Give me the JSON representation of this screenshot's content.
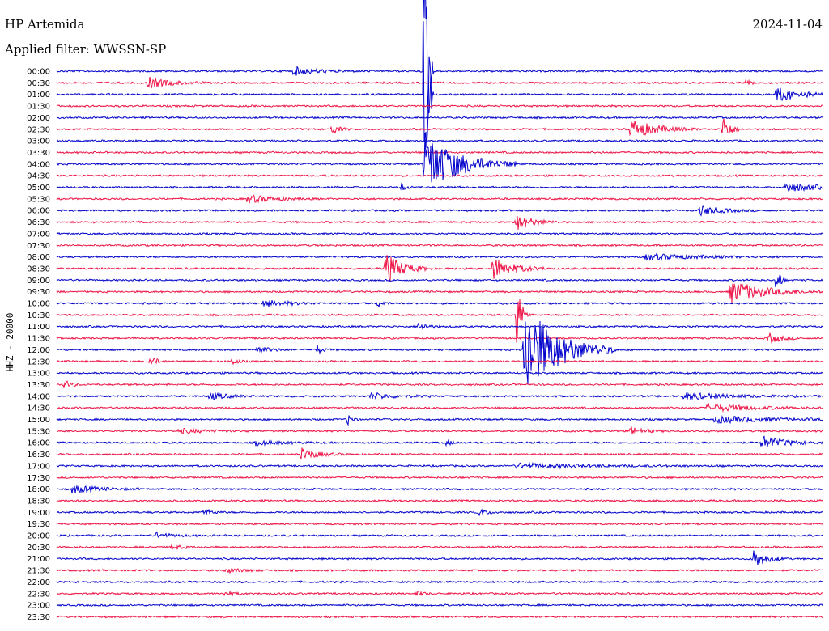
{
  "header": {
    "station": "HP Artemida",
    "filter": "Applied filter: WWSSN-SP",
    "date": "2024-11-04"
  },
  "chart_data": {
    "type": "line",
    "title": "",
    "ylabel": "HHZ - 20000",
    "xlabel": "",
    "grid": false,
    "colors": [
      "#0000cc",
      "#ee1144"
    ],
    "times": [
      "00:00",
      "00:30",
      "01:00",
      "01:30",
      "02:00",
      "02:30",
      "03:00",
      "03:30",
      "04:00",
      "04:30",
      "05:00",
      "05:30",
      "06:00",
      "06:30",
      "07:00",
      "07:30",
      "08:00",
      "08:30",
      "09:00",
      "09:30",
      "10:00",
      "10:30",
      "11:00",
      "11:30",
      "12:00",
      "12:30",
      "13:00",
      "13:30",
      "14:00",
      "14:30",
      "15:00",
      "15:30",
      "16:00",
      "16:30",
      "17:00",
      "17:30",
      "18:00",
      "18:30",
      "19:00",
      "19:30",
      "20:00",
      "20:30",
      "21:00",
      "21:30",
      "22:00",
      "22:30",
      "23:00",
      "23:30"
    ],
    "events": [
      {
        "row": 0,
        "pos": 0.31,
        "amp": 5,
        "width": 0.03
      },
      {
        "row": 1,
        "pos": 0.12,
        "amp": 7,
        "width": 0.025
      },
      {
        "row": 1,
        "pos": 0.9,
        "amp": 4,
        "width": 0.008
      },
      {
        "row": 2,
        "pos": 0.94,
        "amp": 9,
        "width": 0.03
      },
      {
        "row": 0,
        "pos": 0.48,
        "amp": 240,
        "width": 0.004
      },
      {
        "row": 2,
        "pos": 0.48,
        "amp": 210,
        "width": 0.004
      },
      {
        "row": 5,
        "pos": 0.36,
        "amp": 6,
        "width": 0.008
      },
      {
        "row": 5,
        "pos": 0.75,
        "amp": 12,
        "width": 0.03
      },
      {
        "row": 5,
        "pos": 0.87,
        "amp": 20,
        "width": 0.008
      },
      {
        "row": 8,
        "pos": 0.48,
        "amp": 40,
        "width": 0.04
      },
      {
        "row": 10,
        "pos": 0.45,
        "amp": 5,
        "width": 0.006
      },
      {
        "row": 10,
        "pos": 0.95,
        "amp": 6,
        "width": 0.04
      },
      {
        "row": 11,
        "pos": 0.25,
        "amp": 5,
        "width": 0.03
      },
      {
        "row": 12,
        "pos": 0.84,
        "amp": 6,
        "width": 0.025
      },
      {
        "row": 13,
        "pos": 0.6,
        "amp": 10,
        "width": 0.02
      },
      {
        "row": 16,
        "pos": 0.77,
        "amp": 4,
        "width": 0.06
      },
      {
        "row": 17,
        "pos": 0.43,
        "amp": 20,
        "width": 0.02
      },
      {
        "row": 17,
        "pos": 0.57,
        "amp": 14,
        "width": 0.025
      },
      {
        "row": 18,
        "pos": 0.94,
        "amp": 22,
        "width": 0.004
      },
      {
        "row": 19,
        "pos": 0.88,
        "amp": 14,
        "width": 0.04
      },
      {
        "row": 20,
        "pos": 0.27,
        "amp": 4,
        "width": 0.03
      },
      {
        "row": 20,
        "pos": 0.42,
        "amp": 5,
        "width": 0.006
      },
      {
        "row": 21,
        "pos": 0.6,
        "amp": 45,
        "width": 0.006
      },
      {
        "row": 22,
        "pos": 0.47,
        "amp": 6,
        "width": 0.012
      },
      {
        "row": 23,
        "pos": 0.93,
        "amp": 6,
        "width": 0.015
      },
      {
        "row": 24,
        "pos": 0.26,
        "amp": 5,
        "width": 0.015
      },
      {
        "row": 24,
        "pos": 0.34,
        "amp": 6,
        "width": 0.006
      },
      {
        "row": 24,
        "pos": 0.61,
        "amp": 60,
        "width": 0.04
      },
      {
        "row": 25,
        "pos": 0.12,
        "amp": 8,
        "width": 0.008
      },
      {
        "row": 25,
        "pos": 0.23,
        "amp": 5,
        "width": 0.006
      },
      {
        "row": 27,
        "pos": 0.01,
        "amp": 6,
        "width": 0.008
      },
      {
        "row": 28,
        "pos": 0.2,
        "amp": 5,
        "width": 0.02
      },
      {
        "row": 28,
        "pos": 0.41,
        "amp": 4,
        "width": 0.03
      },
      {
        "row": 28,
        "pos": 0.82,
        "amp": 4,
        "width": 0.06
      },
      {
        "row": 29,
        "pos": 0.85,
        "amp": 5,
        "width": 0.05
      },
      {
        "row": 30,
        "pos": 0.38,
        "amp": 8,
        "width": 0.005
      },
      {
        "row": 30,
        "pos": 0.86,
        "amp": 4,
        "width": 0.07
      },
      {
        "row": 31,
        "pos": 0.16,
        "amp": 3,
        "width": 0.03
      },
      {
        "row": 31,
        "pos": 0.75,
        "amp": 5,
        "width": 0.015
      },
      {
        "row": 32,
        "pos": 0.26,
        "amp": 3,
        "width": 0.03
      },
      {
        "row": 32,
        "pos": 0.51,
        "amp": 4,
        "width": 0.006
      },
      {
        "row": 32,
        "pos": 0.92,
        "amp": 8,
        "width": 0.03
      },
      {
        "row": 33,
        "pos": 0.32,
        "amp": 7,
        "width": 0.02
      },
      {
        "row": 34,
        "pos": 0.6,
        "amp": 3,
        "width": 0.09
      },
      {
        "row": 36,
        "pos": 0.02,
        "amp": 5,
        "width": 0.03
      },
      {
        "row": 38,
        "pos": 0.19,
        "amp": 4,
        "width": 0.012
      },
      {
        "row": 38,
        "pos": 0.55,
        "amp": 4,
        "width": 0.012
      },
      {
        "row": 40,
        "pos": 0.13,
        "amp": 3,
        "width": 0.02
      },
      {
        "row": 41,
        "pos": 0.15,
        "amp": 4,
        "width": 0.01
      },
      {
        "row": 42,
        "pos": 0.91,
        "amp": 12,
        "width": 0.015
      },
      {
        "row": 43,
        "pos": 0.22,
        "amp": 3,
        "width": 0.02
      },
      {
        "row": 45,
        "pos": 0.22,
        "amp": 3,
        "width": 0.01
      },
      {
        "row": 45,
        "pos": 0.47,
        "amp": 3,
        "width": 0.008
      }
    ]
  }
}
